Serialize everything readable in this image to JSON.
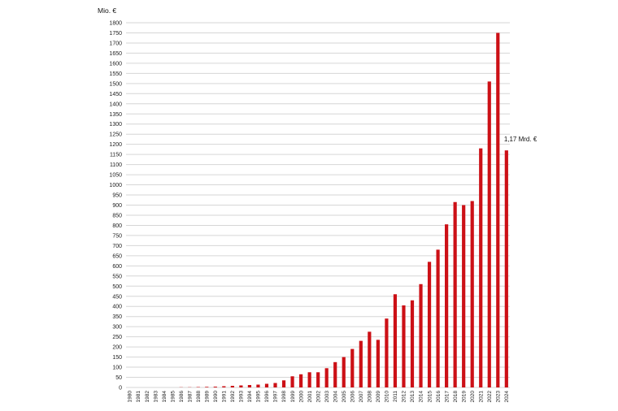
{
  "chart_data": {
    "type": "bar",
    "ylabel": "Mio. €",
    "ylim": [
      0,
      1800
    ],
    "yticks": [
      0,
      50,
      100,
      150,
      200,
      250,
      300,
      350,
      400,
      450,
      500,
      550,
      600,
      650,
      700,
      750,
      800,
      850,
      900,
      950,
      1000,
      1050,
      1100,
      1150,
      1200,
      1250,
      1300,
      1350,
      1400,
      1450,
      1500,
      1550,
      1600,
      1650,
      1700,
      1750,
      1800
    ],
    "categories": [
      "1980",
      "1981",
      "1982",
      "1983",
      "1984",
      "1985",
      "1986",
      "1987",
      "1988",
      "1989",
      "1990",
      "1991",
      "1992",
      "1993",
      "1994",
      "1995",
      "1996",
      "1997",
      "1998",
      "1999",
      "2000",
      "2001",
      "2002",
      "2003",
      "2004",
      "2005",
      "2006",
      "2007",
      "2008",
      "2009",
      "2010",
      "2011",
      "2012",
      "2013",
      "2014",
      "2015",
      "2016",
      "2017",
      "2018",
      "2019",
      "2020",
      "2021",
      "2022",
      "2023",
      "2024"
    ],
    "values": [
      0,
      0,
      0,
      0,
      0,
      0,
      1,
      1,
      2,
      3,
      4,
      6,
      8,
      10,
      12,
      14,
      18,
      22,
      35,
      55,
      65,
      75,
      75,
      95,
      125,
      150,
      190,
      230,
      275,
      235,
      340,
      460,
      405,
      430,
      510,
      620,
      680,
      805,
      915,
      900,
      920,
      1180,
      1510,
      1750,
      1170
    ],
    "annotation": "1,17 Mrd. €",
    "grid": true
  }
}
